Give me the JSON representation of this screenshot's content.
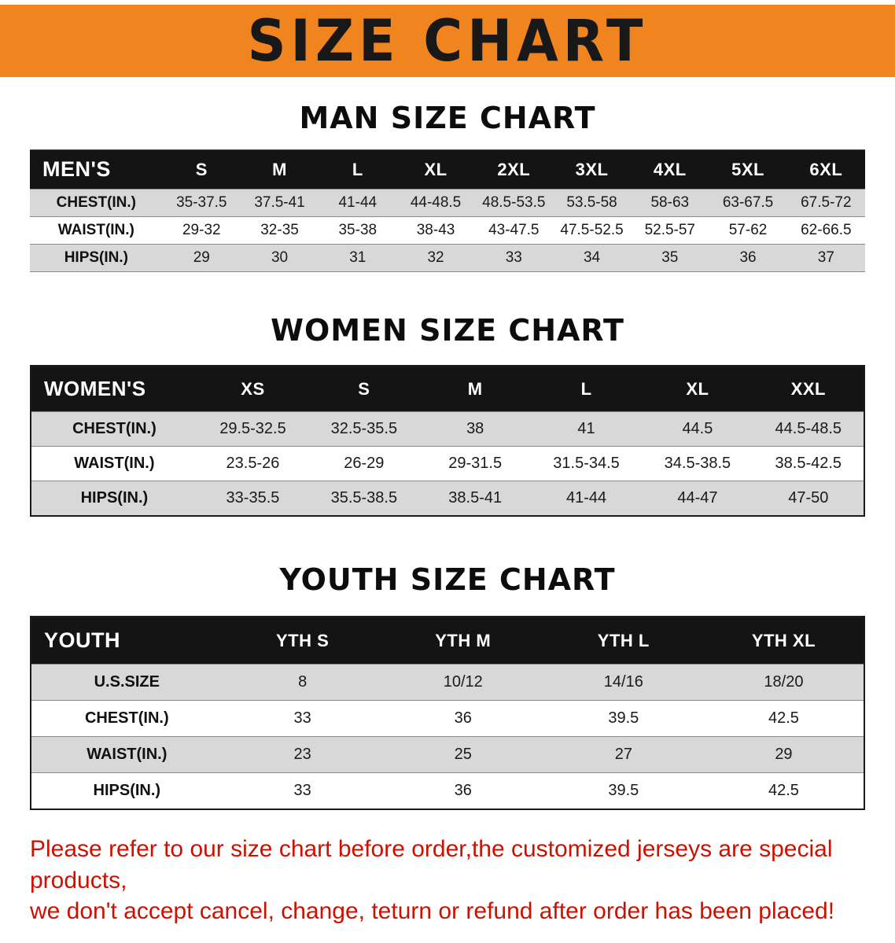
{
  "banner": {
    "title": "SIZE CHART"
  },
  "colors": {
    "banner_bg": "#f08520",
    "header_bg": "#141414",
    "row_alt": "#d8d8d8",
    "warning_red": "#cc1100"
  },
  "sections": [
    {
      "heading": "MAN SIZE CHART",
      "table": {
        "header": [
          "MEN'S",
          "S",
          "M",
          "L",
          "XL",
          "2XL",
          "3XL",
          "4XL",
          "5XL",
          "6XL"
        ],
        "rows": [
          [
            "CHEST(IN.)",
            "35-37.5",
            "37.5-41",
            "41-44",
            "44-48.5",
            "48.5-53.5",
            "53.5-58",
            "58-63",
            "63-67.5",
            "67.5-72"
          ],
          [
            "WAIST(IN.)",
            "29-32",
            "32-35",
            "35-38",
            "38-43",
            "43-47.5",
            "47.5-52.5",
            "52.5-57",
            "57-62",
            "62-66.5"
          ],
          [
            "HIPS(IN.)",
            "29",
            "30",
            "31",
            "32",
            "33",
            "34",
            "35",
            "36",
            "37"
          ]
        ]
      }
    },
    {
      "heading": "WOMEN SIZE CHART",
      "table": {
        "header": [
          "WOMEN'S",
          "XS",
          "S",
          "M",
          "L",
          "XL",
          "XXL"
        ],
        "rows": [
          [
            "CHEST(IN.)",
            "29.5-32.5",
            "32.5-35.5",
            "38",
            "41",
            "44.5",
            "44.5-48.5"
          ],
          [
            "WAIST(IN.)",
            "23.5-26",
            "26-29",
            "29-31.5",
            "31.5-34.5",
            "34.5-38.5",
            "38.5-42.5"
          ],
          [
            "HIPS(IN.)",
            "33-35.5",
            "35.5-38.5",
            "38.5-41",
            "41-44",
            "44-47",
            "47-50"
          ]
        ]
      }
    },
    {
      "heading": "YOUTH SIZE CHART",
      "table": {
        "header": [
          "YOUTH",
          "YTH S",
          "YTH M",
          "YTH L",
          "YTH XL"
        ],
        "rows": [
          [
            "U.S.SIZE",
            "8",
            "10/12",
            "14/16",
            "18/20"
          ],
          [
            "CHEST(IN.)",
            "33",
            "36",
            "39.5",
            "42.5"
          ],
          [
            "WAIST(IN.)",
            "23",
            "25",
            "27",
            "29"
          ],
          [
            "HIPS(IN.)",
            "33",
            "36",
            "39.5",
            "42.5"
          ]
        ]
      }
    }
  ],
  "footer": {
    "line1": "Please refer to our size chart before order,the customized jerseys are special products,",
    "line2": "we don't accept cancel, change, teturn or refund after order has been placed!"
  }
}
